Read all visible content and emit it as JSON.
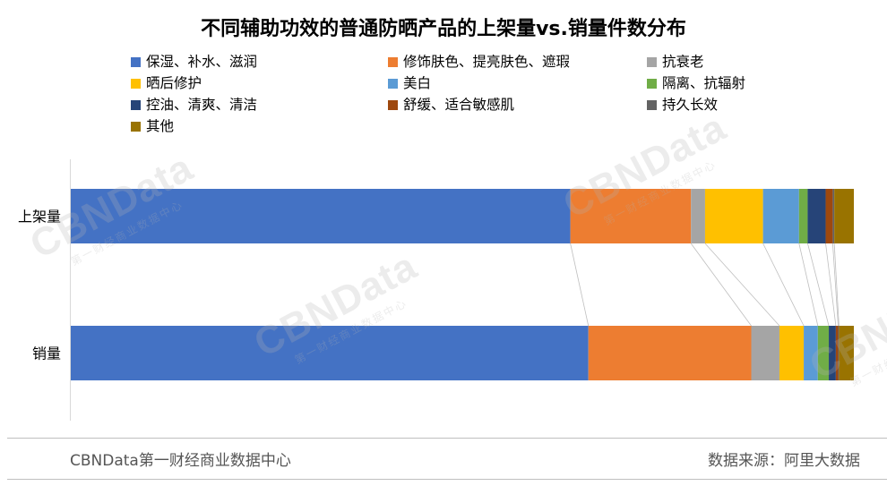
{
  "chart_data": {
    "type": "bar",
    "orientation": "horizontal",
    "stacked": true,
    "normalized": true,
    "title": "不同辅助功效的普通防晒产品的上架量vs.销量件数分布",
    "categories": [
      "上架量",
      "销量"
    ],
    "series": [
      {
        "name": "保湿、补水、滋润",
        "color": "#4472C4",
        "values": [
          0.638,
          0.661
        ]
      },
      {
        "name": "修饰肤色、提亮肤色、遮瑕",
        "color": "#ED7D31",
        "values": [
          0.154,
          0.208
        ]
      },
      {
        "name": "抗衰老",
        "color": "#A5A5A5",
        "values": [
          0.018,
          0.036
        ]
      },
      {
        "name": "晒后修护",
        "color": "#FFC000",
        "values": [
          0.074,
          0.031
        ]
      },
      {
        "name": "美白",
        "color": "#5B9BD5",
        "values": [
          0.046,
          0.018
        ]
      },
      {
        "name": "隔离、抗辐射",
        "color": "#70AD47",
        "values": [
          0.011,
          0.014
        ]
      },
      {
        "name": "控油、清爽、清洁",
        "color": "#264478",
        "values": [
          0.023,
          0.009
        ]
      },
      {
        "name": "舒缓、适合敏感肌",
        "color": "#9E480E",
        "values": [
          0.009,
          0.003
        ]
      },
      {
        "name": "持久长效",
        "color": "#636363",
        "values": [
          0.002,
          0.001
        ]
      },
      {
        "name": "其他",
        "color": "#997300",
        "values": [
          0.025,
          0.019
        ]
      }
    ],
    "xlim": [
      0,
      1
    ],
    "grid": false,
    "legend_position": "top",
    "connector_lines": true
  },
  "footer": {
    "source_brand": "CBNData第一财经商业数据中心",
    "source_data": "数据来源：阿里大数据"
  },
  "watermark": {
    "main": "CBNData",
    "sub": "第一财经商业数据中心"
  }
}
